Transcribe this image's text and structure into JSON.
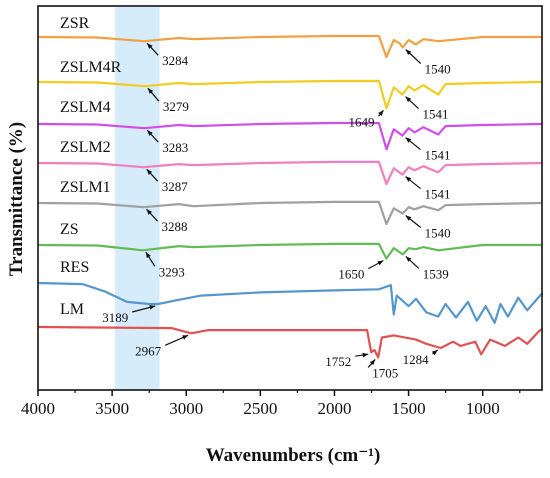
{
  "chart_data": {
    "type": "line",
    "title": "",
    "xlabel": "Wavenumbers (cm⁻¹)",
    "ylabel": "Transmittance (%)",
    "xlim": [
      4000,
      600
    ],
    "x_reversed": true,
    "x_ticks": [
      "4000",
      "3500",
      "3000",
      "2500",
      "2000",
      "1500",
      "1000"
    ],
    "y_ticks": "none",
    "highlight_band": {
      "x": [
        3480,
        3180
      ],
      "color": "#d6ecfb"
    },
    "series": [
      {
        "name": "ZSR",
        "color": "#f2a044",
        "points": [
          [
            4000,
            0
          ],
          [
            3600,
            -0.5
          ],
          [
            3284,
            -4
          ],
          [
            3050,
            -1
          ],
          [
            2950,
            -2
          ],
          [
            2500,
            0
          ],
          [
            2000,
            1
          ],
          [
            1700,
            1
          ],
          [
            1650,
            -19
          ],
          [
            1600,
            -3
          ],
          [
            1560,
            -6
          ],
          [
            1540,
            -10
          ],
          [
            1500,
            -3
          ],
          [
            1450,
            -7
          ],
          [
            1400,
            -2
          ],
          [
            1300,
            -4
          ],
          [
            1000,
            0
          ],
          [
            600,
            0
          ]
        ],
        "annotations": [
          {
            "label": "3284",
            "x": 3284
          },
          {
            "label": "1540",
            "x": 1540
          }
        ]
      },
      {
        "name": "ZSLM4R",
        "color": "#f2cc20",
        "points": [
          [
            4000,
            0
          ],
          [
            3600,
            -0.5
          ],
          [
            3279,
            -4
          ],
          [
            3050,
            -1
          ],
          [
            2950,
            -2
          ],
          [
            2500,
            0
          ],
          [
            2000,
            1
          ],
          [
            1700,
            1
          ],
          [
            1649,
            -25
          ],
          [
            1600,
            -5
          ],
          [
            1541,
            -12
          ],
          [
            1500,
            -4
          ],
          [
            1460,
            -8
          ],
          [
            1400,
            -3
          ],
          [
            1300,
            -12
          ],
          [
            1250,
            -2
          ],
          [
            1000,
            -1
          ],
          [
            600,
            0
          ]
        ],
        "annotations": [
          {
            "label": "3279",
            "x": 3279
          },
          {
            "label": "1649",
            "x": 1649
          },
          {
            "label": "1541",
            "x": 1541
          }
        ]
      },
      {
        "name": "ZSLM4",
        "color": "#d04fe8",
        "points": [
          [
            4000,
            0
          ],
          [
            3600,
            -0.5
          ],
          [
            3283,
            -4
          ],
          [
            3050,
            -1
          ],
          [
            2950,
            -2
          ],
          [
            2500,
            0
          ],
          [
            2000,
            1
          ],
          [
            1700,
            1
          ],
          [
            1649,
            -24
          ],
          [
            1600,
            -5
          ],
          [
            1541,
            -11
          ],
          [
            1500,
            -4
          ],
          [
            1460,
            -8
          ],
          [
            1400,
            -3
          ],
          [
            1300,
            -10
          ],
          [
            1250,
            -2
          ],
          [
            1000,
            -1
          ],
          [
            600,
            0
          ]
        ],
        "annotations": [
          {
            "label": "3283",
            "x": 3283
          },
          {
            "label": "1541",
            "x": 1541
          }
        ]
      },
      {
        "name": "ZSLM2",
        "color": "#f07ec0",
        "points": [
          [
            4000,
            0
          ],
          [
            3600,
            -0.5
          ],
          [
            3287,
            -4
          ],
          [
            3050,
            -1
          ],
          [
            2950,
            -2
          ],
          [
            2500,
            0
          ],
          [
            2000,
            1
          ],
          [
            1700,
            1
          ],
          [
            1650,
            -20
          ],
          [
            1600,
            -5
          ],
          [
            1541,
            -11
          ],
          [
            1500,
            -4
          ],
          [
            1460,
            -7
          ],
          [
            1400,
            -3
          ],
          [
            1300,
            -9
          ],
          [
            1250,
            -2
          ],
          [
            1000,
            -1
          ],
          [
            600,
            0
          ]
        ],
        "annotations": [
          {
            "label": "3287",
            "x": 3287
          },
          {
            "label": "1541",
            "x": 1541
          }
        ]
      },
      {
        "name": "ZSLM1",
        "color": "#a0a0a0",
        "points": [
          [
            4000,
            0
          ],
          [
            3600,
            -0.5
          ],
          [
            3288,
            -4
          ],
          [
            3050,
            -1
          ],
          [
            2950,
            -3
          ],
          [
            2500,
            0
          ],
          [
            2000,
            1
          ],
          [
            1700,
            1
          ],
          [
            1650,
            -20
          ],
          [
            1600,
            -5
          ],
          [
            1540,
            -10
          ],
          [
            1500,
            -4
          ],
          [
            1460,
            -6
          ],
          [
            1400,
            -3
          ],
          [
            1300,
            -7
          ],
          [
            1250,
            -2
          ],
          [
            1000,
            -1
          ],
          [
            600,
            0
          ]
        ],
        "annotations": [
          {
            "label": "3288",
            "x": 3288
          },
          {
            "label": "1540",
            "x": 1540
          }
        ]
      },
      {
        "name": "ZS",
        "color": "#62bb55",
        "points": [
          [
            4000,
            0
          ],
          [
            3600,
            -0.5
          ],
          [
            3293,
            -5
          ],
          [
            3050,
            -1
          ],
          [
            2950,
            -2
          ],
          [
            2500,
            0
          ],
          [
            2000,
            1
          ],
          [
            1700,
            1
          ],
          [
            1650,
            -13
          ],
          [
            1600,
            -3
          ],
          [
            1539,
            -9
          ],
          [
            1500,
            -3
          ],
          [
            1450,
            -4
          ],
          [
            1400,
            -2
          ],
          [
            1300,
            -5
          ],
          [
            1000,
            0
          ],
          [
            600,
            0
          ]
        ],
        "annotations": [
          {
            "label": "3293",
            "x": 3293
          },
          {
            "label": "1650",
            "x": 1650
          },
          {
            "label": "1539",
            "x": 1539
          }
        ]
      },
      {
        "name": "RES",
        "color": "#5597cc",
        "points": [
          [
            4000,
            0
          ],
          [
            3700,
            -1
          ],
          [
            3550,
            -8
          ],
          [
            3400,
            -18
          ],
          [
            3250,
            -20
          ],
          [
            3189,
            -20
          ],
          [
            3050,
            -16
          ],
          [
            2900,
            -12
          ],
          [
            2500,
            -9
          ],
          [
            2000,
            -7
          ],
          [
            1700,
            -6
          ],
          [
            1620,
            -2
          ],
          [
            1600,
            -30
          ],
          [
            1580,
            -12
          ],
          [
            1500,
            -22
          ],
          [
            1450,
            -15
          ],
          [
            1380,
            -28
          ],
          [
            1300,
            -32
          ],
          [
            1250,
            -20
          ],
          [
            1180,
            -33
          ],
          [
            1100,
            -18
          ],
          [
            1040,
            -36
          ],
          [
            980,
            -22
          ],
          [
            920,
            -38
          ],
          [
            880,
            -20
          ],
          [
            830,
            -32
          ],
          [
            760,
            -14
          ],
          [
            700,
            -26
          ],
          [
            650,
            -18
          ],
          [
            600,
            -10
          ]
        ],
        "annotations": [
          {
            "label": "3189",
            "x": 3189
          }
        ]
      },
      {
        "name": "LM",
        "color": "#e05252",
        "points": [
          [
            4000,
            0
          ],
          [
            3100,
            -1
          ],
          [
            2967,
            -6
          ],
          [
            2850,
            -3
          ],
          [
            2000,
            -3
          ],
          [
            1780,
            -3
          ],
          [
            1752,
            -24
          ],
          [
            1730,
            -22
          ],
          [
            1705,
            -29
          ],
          [
            1680,
            -10
          ],
          [
            1600,
            -8
          ],
          [
            1450,
            -12
          ],
          [
            1380,
            -16
          ],
          [
            1284,
            -20
          ],
          [
            1200,
            -14
          ],
          [
            1150,
            -18
          ],
          [
            1050,
            -14
          ],
          [
            1010,
            -26
          ],
          [
            950,
            -12
          ],
          [
            850,
            -18
          ],
          [
            760,
            -10
          ],
          [
            700,
            -16
          ],
          [
            620,
            -4
          ],
          [
            600,
            -2
          ]
        ],
        "annotations": [
          {
            "label": "2967",
            "x": 2967
          },
          {
            "label": "1752",
            "x": 1752
          },
          {
            "label": "1705",
            "x": 1705
          },
          {
            "label": "1284",
            "x": 1284
          }
        ]
      }
    ]
  }
}
